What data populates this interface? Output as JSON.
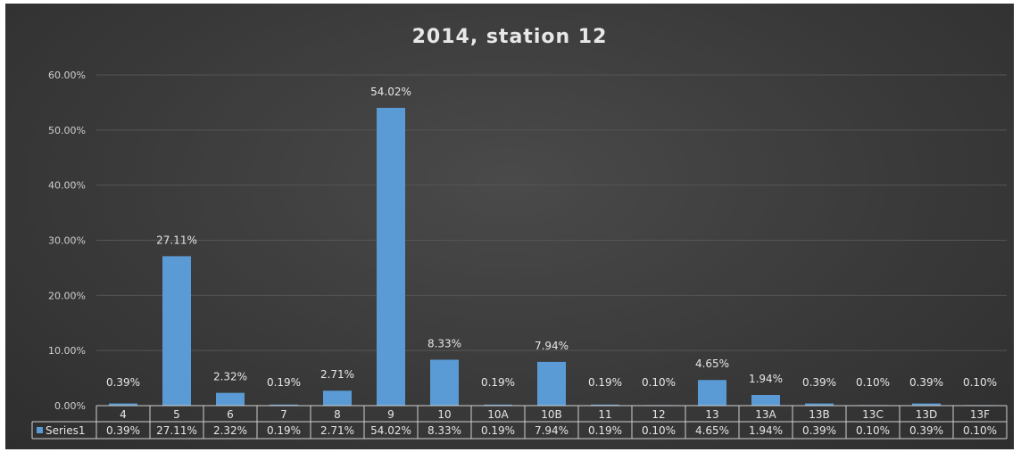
{
  "chart_data": {
    "type": "bar",
    "title": "2014, station 12",
    "categories": [
      "4",
      "5",
      "6",
      "7",
      "8",
      "9",
      "10",
      "10A",
      "10B",
      "11",
      "12",
      "13",
      "13A",
      "13B",
      "13C",
      "13D",
      "13F"
    ],
    "series": [
      {
        "name": "Series1",
        "values": [
          0.39,
          27.11,
          2.32,
          0.19,
          2.71,
          54.02,
          8.33,
          0.19,
          7.94,
          0.19,
          0.1,
          4.65,
          1.94,
          0.39,
          0.1,
          0.39,
          0.1
        ],
        "labels": [
          "0.39%",
          "27.11%",
          "2.32%",
          "0.19%",
          "2.71%",
          "54.02%",
          "8.33%",
          "0.19%",
          "7.94%",
          "0.19%",
          "0.10%",
          "4.65%",
          "1.94%",
          "0.39%",
          "0.10%",
          "0.39%",
          "0.10%"
        ],
        "color": "#5b9bd5"
      }
    ],
    "ylim": [
      0,
      60
    ],
    "yticks": [
      "0.00%",
      "10.00%",
      "20.00%",
      "30.00%",
      "40.00%",
      "50.00%",
      "60.00%"
    ],
    "grid": true,
    "legend": "data-table",
    "background": "#3a3a3a"
  }
}
